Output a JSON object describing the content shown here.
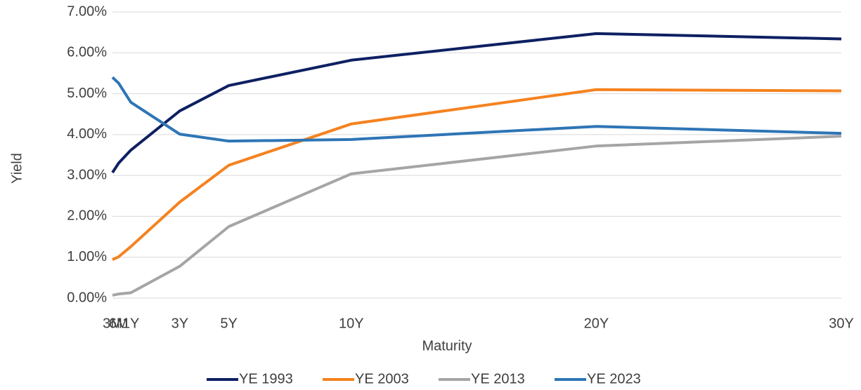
{
  "chart_data": {
    "type": "line",
    "x_label": "Maturity",
    "y_label": "Yield",
    "x": [
      0.25,
      0.5,
      1,
      3,
      5,
      10,
      20,
      30
    ],
    "xlim": [
      0.25,
      30
    ],
    "xticks": [
      {
        "value": 0.25,
        "label": "3M"
      },
      {
        "value": 0.5,
        "label": "6M"
      },
      {
        "value": 1,
        "label": "1Y"
      },
      {
        "value": 3,
        "label": "3Y"
      },
      {
        "value": 5,
        "label": "5Y"
      },
      {
        "value": 10,
        "label": "10Y"
      },
      {
        "value": 20,
        "label": "20Y"
      },
      {
        "value": 30,
        "label": "30Y"
      }
    ],
    "ylim": [
      0,
      7
    ],
    "yticks": [
      {
        "value": 0,
        "label": "0.00%"
      },
      {
        "value": 1,
        "label": "1.00%"
      },
      {
        "value": 2,
        "label": "2.00%"
      },
      {
        "value": 3,
        "label": "3.00%"
      },
      {
        "value": 4,
        "label": "4.00%"
      },
      {
        "value": 5,
        "label": "5.00%"
      },
      {
        "value": 6,
        "label": "6.00%"
      },
      {
        "value": 7,
        "label": "7.00%"
      }
    ],
    "grid": true,
    "legend": "bottom",
    "series": [
      {
        "name": "YE 1993",
        "color": "#0e2062",
        "values": [
          3.07,
          3.3,
          3.62,
          4.58,
          5.2,
          5.82,
          6.47,
          6.34
        ]
      },
      {
        "name": "YE 2003",
        "color": "#f5821f",
        "values": [
          0.94,
          1.01,
          1.26,
          2.35,
          3.25,
          4.26,
          5.1,
          5.07
        ]
      },
      {
        "name": "YE 2013",
        "color": "#a5a5a5",
        "values": [
          0.07,
          0.1,
          0.13,
          0.78,
          1.75,
          3.04,
          3.72,
          3.96
        ]
      },
      {
        "name": "YE 2023",
        "color": "#2e75b6",
        "values": [
          5.4,
          5.26,
          4.79,
          4.01,
          3.84,
          3.88,
          4.2,
          4.03
        ]
      }
    ]
  }
}
